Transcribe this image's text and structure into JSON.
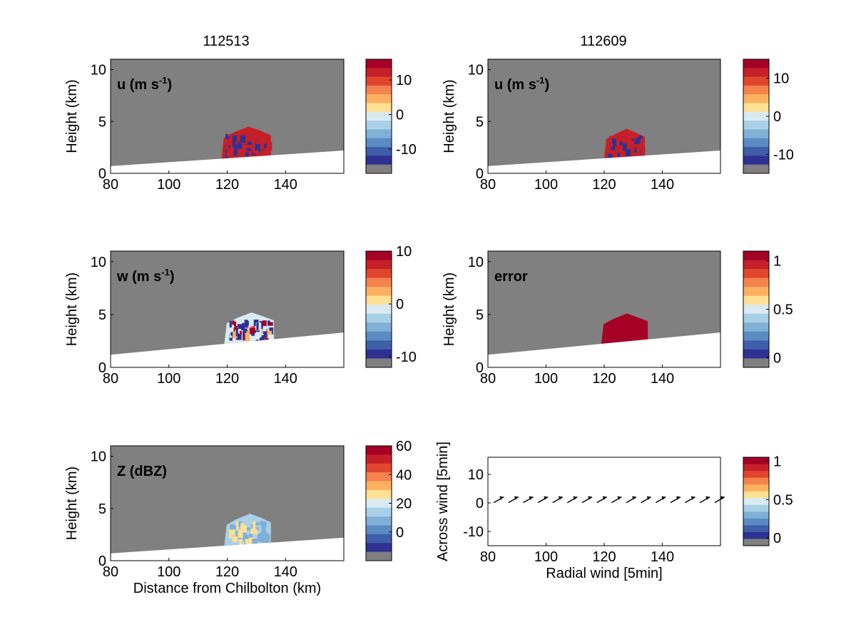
{
  "figure": {
    "column_titles": [
      "112513",
      "112609"
    ],
    "axis_ylabel_height": "Height (km)",
    "axis_xlabel_distance": "Distance from Chilbolton (km)"
  },
  "colors": {
    "no_data": "#808080",
    "below_surface": "#ffffff",
    "palette": [
      "#2e3191",
      "#3f5ea9",
      "#5b8bc3",
      "#7fb0d6",
      "#a9d0e6",
      "#d8ebf3",
      "#fee194",
      "#fcb161",
      "#f4834e",
      "#e0462d",
      "#c5202a",
      "#a50026"
    ]
  },
  "chart_data": [
    {
      "id": "u-112513",
      "type": "heatmap",
      "title": "112513",
      "label_text": "u (m s",
      "label_sup": "-1",
      "label_close": ")",
      "xlabel": "",
      "ylabel": "Height (km)",
      "xlim": [
        80,
        160
      ],
      "ylim": [
        0,
        11
      ],
      "xticks": [
        80,
        100,
        120,
        140
      ],
      "yticks": [
        0,
        5,
        10
      ],
      "surface": {
        "x": [
          80,
          160
        ],
        "height_km": [
          0.7,
          2.2
        ]
      },
      "colorbar": {
        "range": [
          -17,
          16
        ],
        "ticks": [
          10,
          0,
          -10
        ],
        "levels": 12
      },
      "echo": {
        "x_range_km": [
          118,
          135
        ],
        "top_km": 4.5,
        "dominant": "red_blue_mixed"
      }
    },
    {
      "id": "u-112609",
      "type": "heatmap",
      "title": "112609",
      "label_text": "u (m s",
      "label_sup": "-1",
      "label_close": ")",
      "xlabel": "",
      "ylabel": "Height (km)",
      "xlim": [
        80,
        160
      ],
      "ylim": [
        0,
        11
      ],
      "xticks": [
        80,
        100,
        120,
        140
      ],
      "yticks": [
        0,
        5,
        10
      ],
      "surface": {
        "x": [
          80,
          160
        ],
        "height_km": [
          0.7,
          2.2
        ]
      },
      "colorbar": {
        "range": [
          -15,
          15
        ],
        "ticks": [
          10,
          0,
          -10
        ],
        "levels": 12
      },
      "echo": {
        "x_range_km": [
          120,
          134
        ],
        "top_km": 4.3,
        "dominant": "red_blue_mixed"
      }
    },
    {
      "id": "w-112513",
      "type": "heatmap",
      "label_text": "w (m s",
      "label_sup": "-1",
      "label_close": ")",
      "xlabel": "",
      "ylabel": "Height (km)",
      "xlim": [
        80,
        160
      ],
      "ylim": [
        0,
        11
      ],
      "xticks": [
        80,
        100,
        120,
        140
      ],
      "yticks": [
        0,
        5,
        10
      ],
      "surface": {
        "x": [
          80,
          160
        ],
        "height_km": [
          1.2,
          3.3
        ]
      },
      "colorbar": {
        "range": [
          -12,
          10
        ],
        "ticks": [
          10,
          0,
          -10
        ],
        "levels": 12
      },
      "echo": {
        "x_range_km": [
          119,
          136
        ],
        "top_km": 5.2,
        "dominant": "mixed"
      }
    },
    {
      "id": "error-112609",
      "type": "heatmap",
      "label_text": "error",
      "label_sup": "",
      "label_close": "",
      "xlabel": "",
      "ylabel": "Height (km)",
      "xlim": [
        80,
        160
      ],
      "ylim": [
        0,
        11
      ],
      "xticks": [
        80,
        100,
        120,
        140
      ],
      "yticks": [
        0,
        5,
        10
      ],
      "surface": {
        "x": [
          80,
          160
        ],
        "height_km": [
          1.2,
          3.3
        ]
      },
      "colorbar": {
        "range": [
          -0.1,
          1.1
        ],
        "ticks": [
          1,
          0.5,
          0
        ],
        "levels": 12
      },
      "echo": {
        "x_range_km": [
          119,
          135
        ],
        "top_km": 5.1,
        "dominant": "dark_red"
      }
    },
    {
      "id": "z-112513",
      "type": "heatmap",
      "label_text": "Z (dBZ)",
      "label_sup": "",
      "label_close": "",
      "xlabel": "Distance from Chilbolton (km)",
      "ylabel": "Height (km)",
      "xlim": [
        80,
        160
      ],
      "ylim": [
        0,
        11
      ],
      "xticks": [
        80,
        100,
        120,
        140
      ],
      "yticks": [
        0,
        5,
        10
      ],
      "surface": {
        "x": [
          80,
          160
        ],
        "height_km": [
          0.7,
          2.2
        ]
      },
      "colorbar": {
        "range": [
          -20,
          60
        ],
        "ticks": [
          60,
          40,
          20,
          0
        ],
        "levels": 12
      },
      "echo": {
        "x_range_km": [
          119,
          135
        ],
        "top_km": 4.5,
        "dominant": "light_blue"
      }
    },
    {
      "id": "wind-112609",
      "type": "quiver",
      "xlabel": "Radial wind [5min]",
      "ylabel": "Across wind [5min]",
      "xlim": [
        80,
        160
      ],
      "ylim": [
        -15,
        16
      ],
      "xticks": [
        80,
        100,
        120,
        140
      ],
      "yticks": [
        10,
        0,
        -10
      ],
      "colorbar": {
        "range": [
          -0.1,
          1.05
        ],
        "ticks": [
          1,
          0.5,
          0
        ],
        "levels": 12
      },
      "arrows": {
        "x_start": 82,
        "x_end": 158,
        "count": 16,
        "y": 0.6
      }
    }
  ]
}
